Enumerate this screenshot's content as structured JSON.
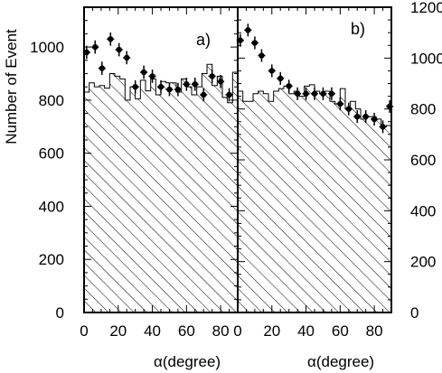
{
  "chart_data": [
    {
      "type": "histogram_with_points",
      "panel_label": "a)",
      "xlabel": "α(degree)",
      "ylabel": "Number of Event",
      "xlim": [
        0,
        90
      ],
      "ylim": [
        0,
        1150
      ],
      "x_ticks": [
        0,
        20,
        40,
        60,
        80
      ],
      "y_ticks": [
        0,
        200,
        400,
        600,
        800,
        1000
      ],
      "y_axis_side": "left",
      "histogram": {
        "bin_edges": [
          0,
          3,
          6,
          9,
          12,
          15,
          18,
          21,
          24,
          27,
          30,
          33,
          36,
          39,
          42,
          45,
          48,
          51,
          54,
          57,
          60,
          63,
          66,
          69,
          72,
          75,
          78,
          81,
          84,
          87,
          90
        ],
        "values": [
          830,
          865,
          850,
          855,
          845,
          900,
          890,
          880,
          800,
          850,
          805,
          875,
          835,
          880,
          820,
          870,
          865,
          865,
          830,
          880,
          850,
          820,
          850,
          900,
          935,
          855,
          890,
          810,
          790,
          905
        ]
      },
      "points": {
        "x": [
          1.5,
          6.5,
          10.5,
          15.5,
          20.5,
          25,
          30,
          35,
          40,
          45,
          50,
          55,
          60,
          65,
          70,
          75,
          80,
          85
        ],
        "y": [
          980,
          1000,
          920,
          1030,
          990,
          960,
          850,
          905,
          890,
          850,
          840,
          840,
          860,
          860,
          820,
          890,
          870,
          820
        ],
        "yerr": [
          25,
          25,
          25,
          25,
          25,
          25,
          25,
          25,
          25,
          25,
          25,
          25,
          25,
          25,
          25,
          25,
          25,
          25
        ]
      }
    },
    {
      "type": "histogram_with_points",
      "panel_label": "b)",
      "xlabel": "α(degree)",
      "ylabel": "",
      "xlim": [
        0,
        90
      ],
      "ylim": [
        0,
        1200
      ],
      "x_ticks": [
        0,
        20,
        40,
        60,
        80
      ],
      "y_ticks": [
        0,
        200,
        400,
        600,
        800,
        1000,
        1200
      ],
      "y_axis_side": "right",
      "histogram": {
        "bin_edges": [
          0,
          3,
          6,
          9,
          12,
          15,
          18,
          21,
          24,
          27,
          30,
          33,
          36,
          39,
          42,
          45,
          48,
          51,
          54,
          57,
          60,
          63,
          66,
          69,
          72,
          75,
          78,
          81,
          84,
          87,
          90
        ],
        "values": [
          870,
          830,
          830,
          860,
          870,
          860,
          830,
          870,
          880,
          890,
          860,
          870,
          850,
          890,
          895,
          870,
          860,
          870,
          830,
          820,
          880,
          800,
          830,
          800,
          760,
          770,
          770,
          760,
          730,
          735
        ]
      },
      "points": {
        "x": [
          1.5,
          6,
          10,
          14,
          20,
          25,
          30,
          35,
          40,
          45,
          50,
          55,
          60,
          65,
          70,
          75,
          80,
          85,
          89
        ],
        "y": [
          1070,
          1110,
          1060,
          1010,
          950,
          920,
          890,
          860,
          860,
          860,
          860,
          860,
          820,
          800,
          770,
          770,
          760,
          730,
          810
        ],
        "yerr": [
          25,
          25,
          25,
          25,
          25,
          25,
          25,
          25,
          25,
          25,
          25,
          25,
          25,
          25,
          25,
          25,
          25,
          25,
          25
        ]
      }
    }
  ]
}
